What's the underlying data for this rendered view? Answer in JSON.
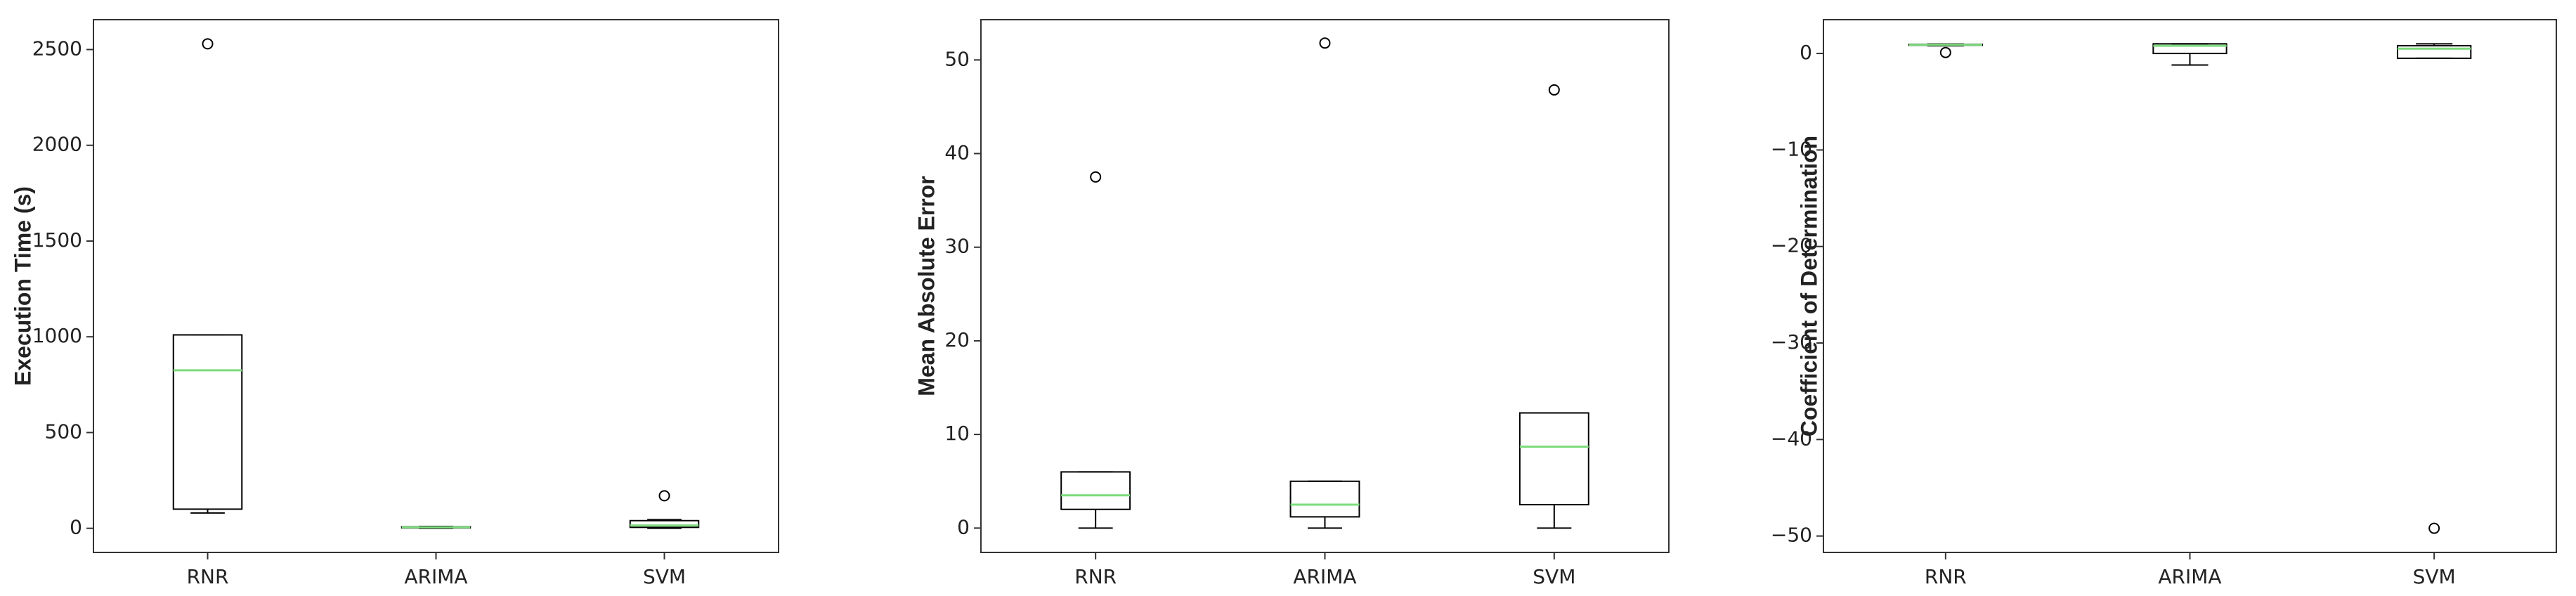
{
  "chart_data": [
    {
      "type": "box",
      "ylabel": "Execution Time (s)",
      "categories": [
        "RNR",
        "ARIMA",
        "SVM"
      ],
      "color": "#000000",
      "median_color": "#7ddc7d",
      "boxes": [
        {
          "whislo": 80,
          "q1": 100,
          "med": 825,
          "q3": 1010,
          "whishi": 1010,
          "fliers": [
            2530
          ]
        },
        {
          "whislo": 0,
          "q1": 2,
          "med": 5,
          "q3": 8,
          "whishi": 10,
          "fliers": []
        },
        {
          "whislo": 0,
          "q1": 5,
          "med": 15,
          "q3": 40,
          "whishi": 45,
          "fliers": [
            170
          ]
        }
      ],
      "ylim": [
        -126,
        2656
      ],
      "yticks": [
        0,
        500,
        1000,
        1500,
        2000,
        2500
      ]
    },
    {
      "type": "box",
      "ylabel": "Mean Absolute Error",
      "categories": [
        "RNR",
        "ARIMA",
        "SVM"
      ],
      "color": "#000000",
      "median_color": "#7ddc7d",
      "boxes": [
        {
          "whislo": 0,
          "q1": 2,
          "med": 3.5,
          "q3": 6,
          "whishi": 6,
          "fliers": [
            37.5
          ]
        },
        {
          "whislo": 0,
          "q1": 1.2,
          "med": 2.5,
          "q3": 5,
          "whishi": 5,
          "fliers": [
            51.8
          ]
        },
        {
          "whislo": 0,
          "q1": 2.5,
          "med": 8.7,
          "q3": 12.3,
          "whishi": 12.3,
          "fliers": [
            46.8
          ]
        }
      ],
      "ylim": [
        -2.6,
        54.3
      ],
      "yticks": [
        0,
        10,
        20,
        30,
        40,
        50
      ]
    },
    {
      "type": "box",
      "ylabel": "Coefficient of Determination",
      "categories": [
        "RNR",
        "ARIMA",
        "SVM"
      ],
      "color": "#000000",
      "median_color": "#7ddc7d",
      "boxes": [
        {
          "whislo": 0.8,
          "q1": 0.85,
          "med": 0.9,
          "q3": 0.95,
          "whishi": 0.98,
          "fliers": [
            0.1
          ]
        },
        {
          "whislo": -1.2,
          "q1": 0,
          "med": 0.8,
          "q3": 1,
          "whishi": 1,
          "fliers": []
        },
        {
          "whislo": -0.5,
          "q1": -0.5,
          "med": 0.5,
          "q3": 0.8,
          "whishi": 1,
          "fliers": [
            -49.2
          ]
        }
      ],
      "ylim": [
        -51.7,
        3.5
      ],
      "yticks": [
        0,
        {
          "value": -10,
          "label": "−10"
        },
        {
          "value": -20,
          "label": "−20"
        },
        {
          "value": -30,
          "label": "−30"
        },
        {
          "value": -40,
          "label": "−40"
        },
        {
          "value": -50,
          "label": "−50"
        }
      ]
    }
  ]
}
